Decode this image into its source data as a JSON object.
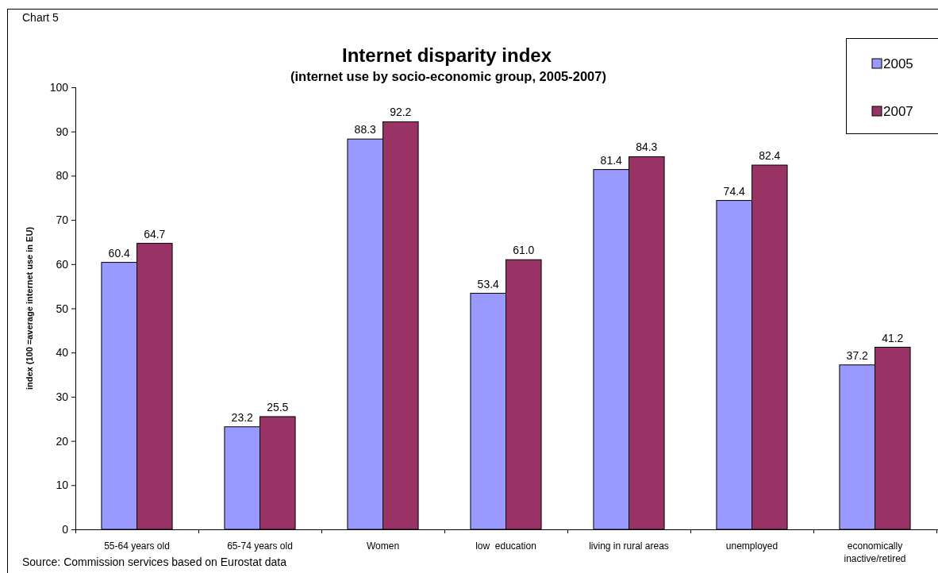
{
  "chart_data": {
    "type": "bar",
    "title": "Internet disparity index",
    "subtitle": "(internet use by socio-economic group, 2005-2007)",
    "ylabel": "index (100 =average internet use in EU)",
    "annotations": [
      "Chart 5",
      "Source: Commission services based on Eurostat data"
    ],
    "categories": [
      "55-64 years old",
      "65-74 years old",
      "Women",
      "low  education",
      "living in rural areas",
      "unemployed",
      "economically inactive/retired"
    ],
    "series": [
      {
        "name": "2005",
        "color": "#9999ff",
        "values": [
          60.4,
          23.2,
          88.3,
          53.4,
          81.4,
          74.4,
          37.2
        ],
        "value_labels": [
          "60.4",
          "23.2",
          "88.3",
          "53.4",
          "81.4",
          "74.4",
          "37.2"
        ]
      },
      {
        "name": "2007",
        "color": "#993366",
        "values": [
          64.7,
          25.5,
          92.2,
          61.0,
          84.3,
          82.4,
          41.2
        ],
        "value_labels": [
          "64.7",
          "25.5",
          "92.2",
          "61.0",
          "84.3",
          "82.4",
          "41.2"
        ]
      }
    ],
    "ylim": [
      0,
      100
    ],
    "yticks": [
      0,
      10,
      20,
      30,
      40,
      50,
      60,
      70,
      80,
      90,
      100
    ],
    "grid": false,
    "legend": "top right"
  }
}
